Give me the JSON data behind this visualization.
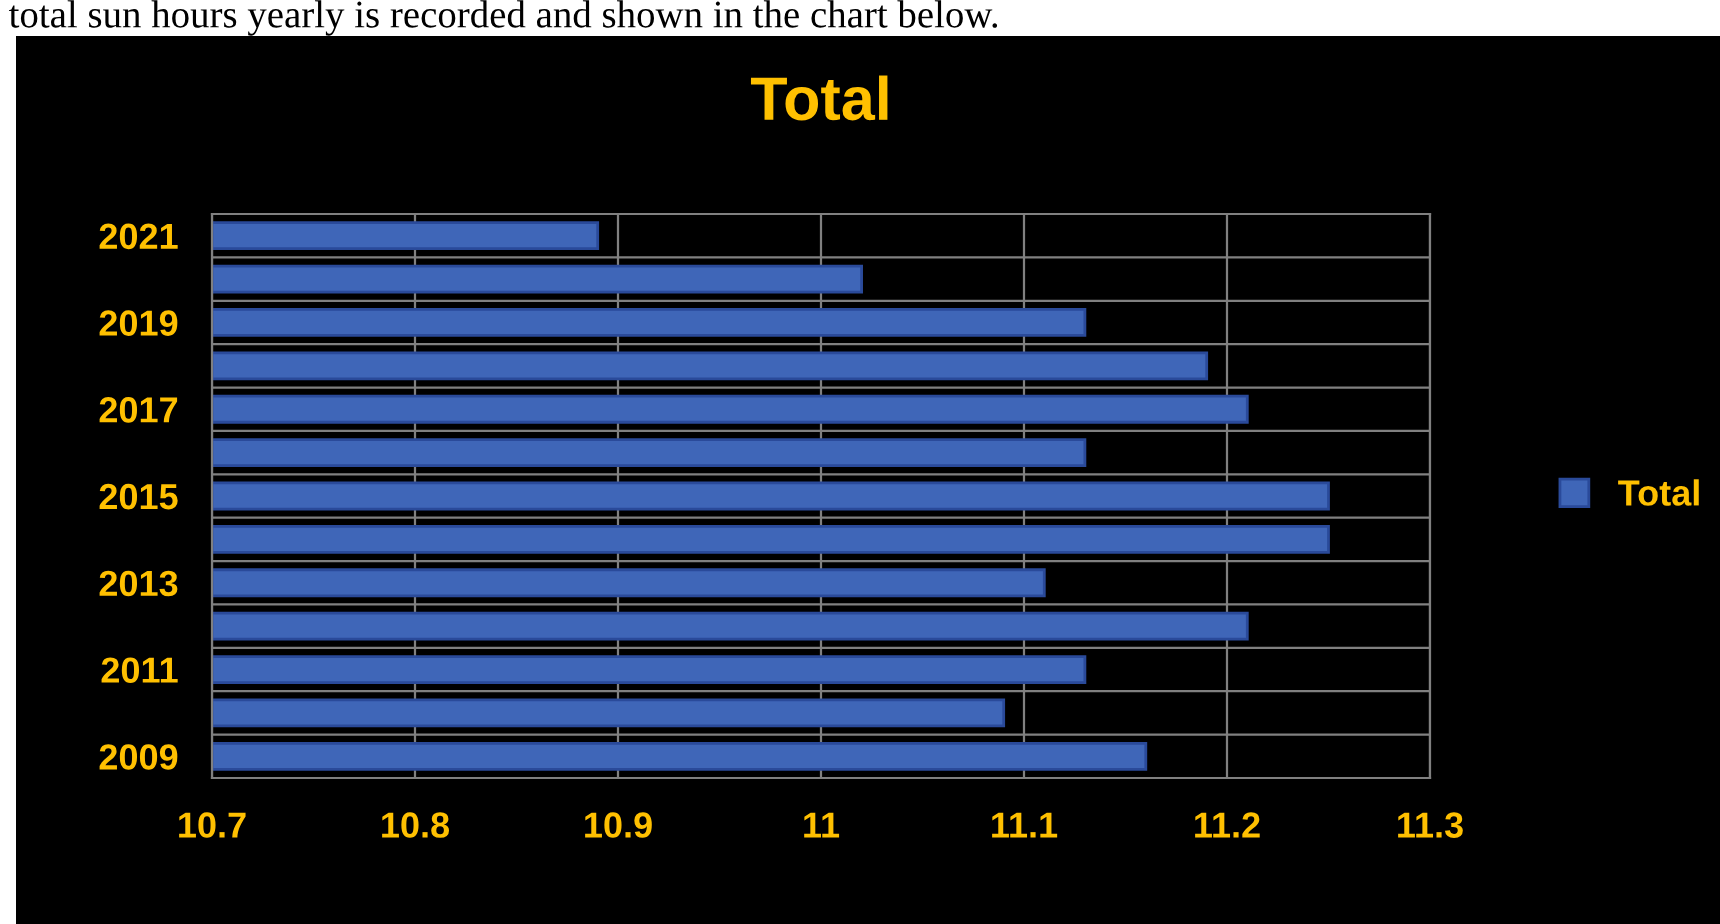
{
  "chart_data": {
    "type": "bar",
    "orientation": "horizontal",
    "title": "Total",
    "annotations": [
      "total sun hours yearly is recorded and shown in the chart below."
    ],
    "categories": [
      "2021",
      null,
      "2019",
      null,
      "2017",
      null,
      "2015",
      null,
      "2013",
      null,
      "2011",
      null,
      "2009"
    ],
    "series": [
      {
        "name": "Total",
        "color": "#3f66b8",
        "values": [
          10.89,
          11.02,
          11.13,
          11.19,
          11.21,
          11.13,
          11.25,
          11.25,
          11.11,
          11.21,
          11.13,
          11.09,
          11.16
        ]
      }
    ],
    "xlim": [
      10.7,
      11.3
    ],
    "xticks": [
      10.7,
      10.8,
      10.9,
      11,
      11.1,
      11.2,
      11.3
    ],
    "grid": true,
    "legend": "right"
  }
}
